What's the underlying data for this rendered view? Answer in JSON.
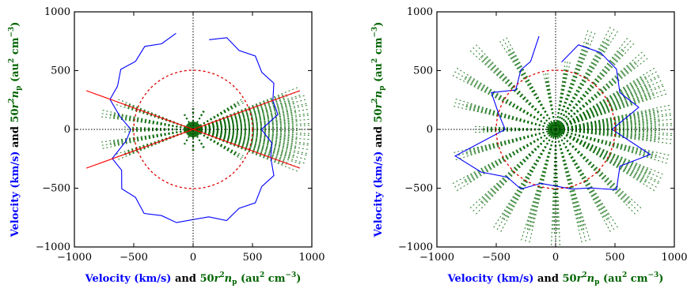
{
  "figure": {
    "colors": {
      "velocity": "#0000ff",
      "density": "#006400",
      "circle": "#e00000",
      "lines": "#ff0000"
    },
    "xlabel": {
      "velocity": "Velocity (km/s)",
      "and": " and ",
      "density_prefix": "50",
      "r": "r",
      "two": "2",
      "n": "n",
      "p": "p",
      "units": " (au",
      "cm": " cm",
      "minus3": "−3",
      "close": ")"
    },
    "ylabel": {
      "velocity": "Velocity (km/s)",
      "and": " and ",
      "density_prefix": "50",
      "r": "r",
      "two": "2",
      "n": "n",
      "p": "p",
      "units": " (au",
      "cm": " cm",
      "minus3": "−3",
      "close": ")"
    }
  },
  "chart_data": [
    {
      "type": "scatter",
      "panel": "left",
      "xlim": [
        -1000,
        1000
      ],
      "ylim": [
        -1000,
        1000
      ],
      "xticks": [
        "−1000",
        "−500",
        "0",
        "500",
        "1000"
      ],
      "yticks": [
        "1000",
        "500",
        "0",
        "−500",
        "−1000"
      ],
      "xtick_values": [
        -1000,
        -500,
        0,
        500,
        1000
      ],
      "ytick_values": [
        1000,
        500,
        0,
        -500,
        -1000
      ],
      "reference_circle_radius": 500,
      "red_lines": [
        {
          "from": [
            -900,
            -330
          ],
          "to": [
            900,
            330
          ]
        },
        {
          "from": [
            -900,
            330
          ],
          "to": [
            900,
            -330
          ]
        }
      ],
      "velocity_curve": [
        {
          "angle_deg": 100,
          "r": 805
        },
        {
          "angle_deg": 110,
          "r": 800
        },
        {
          "angle_deg": 120,
          "r": 790
        },
        {
          "angle_deg": 130,
          "r": 780
        },
        {
          "angle_deg": 140,
          "r": 770
        },
        {
          "angle_deg": 150,
          "r": 760
        },
        {
          "angle_deg": 160,
          "r": 720
        },
        {
          "angle_deg": 170,
          "r": 650
        },
        {
          "angle_deg": 180,
          "r": 500
        },
        {
          "angle_deg": 190,
          "r": 600
        },
        {
          "angle_deg": 200,
          "r": 700
        },
        {
          "angle_deg": 210,
          "r": 720
        },
        {
          "angle_deg": 220,
          "r": 760
        },
        {
          "angle_deg": 230,
          "r": 780
        },
        {
          "angle_deg": 240,
          "r": 800
        },
        {
          "angle_deg": 250,
          "r": 805
        },
        {
          "angle_deg": 260,
          "r": 780
        },
        {
          "angle_deg": 280,
          "r": 780
        },
        {
          "angle_deg": 290,
          "r": 800
        },
        {
          "angle_deg": 300,
          "r": 800
        },
        {
          "angle_deg": 310,
          "r": 790
        },
        {
          "angle_deg": 320,
          "r": 780
        },
        {
          "angle_deg": 330,
          "r": 760
        },
        {
          "angle_deg": 340,
          "r": 720
        },
        {
          "angle_deg": 350,
          "r": 650
        },
        {
          "angle_deg": 0,
          "r": 600
        },
        {
          "angle_deg": 10,
          "r": 700
        },
        {
          "angle_deg": 20,
          "r": 740
        },
        {
          "angle_deg": 30,
          "r": 760
        },
        {
          "angle_deg": 40,
          "r": 780
        },
        {
          "angle_deg": 50,
          "r": 790
        },
        {
          "angle_deg": 60,
          "r": 800
        },
        {
          "angle_deg": 70,
          "r": 805
        },
        {
          "angle_deg": 80,
          "r": 800
        }
      ],
      "density_rays": [
        {
          "angle_deg": -20,
          "r": 950
        },
        {
          "angle_deg": -15,
          "r": 1000
        },
        {
          "angle_deg": -10,
          "r": 1000
        },
        {
          "angle_deg": -5,
          "r": 1000
        },
        {
          "angle_deg": 0,
          "r": 1000
        },
        {
          "angle_deg": 5,
          "r": 1000
        },
        {
          "angle_deg": 10,
          "r": 1000
        },
        {
          "angle_deg": 15,
          "r": 1000
        },
        {
          "angle_deg": 20,
          "r": 950
        },
        {
          "angle_deg": 30,
          "r": 500
        },
        {
          "angle_deg": -30,
          "r": 500
        },
        {
          "angle_deg": 60,
          "r": 200
        },
        {
          "angle_deg": 90,
          "r": 180
        },
        {
          "angle_deg": 120,
          "r": 150
        },
        {
          "angle_deg": 160,
          "r": 700
        },
        {
          "angle_deg": 170,
          "r": 800
        },
        {
          "angle_deg": 180,
          "r": 600
        },
        {
          "angle_deg": 190,
          "r": 800
        },
        {
          "angle_deg": 200,
          "r": 700
        },
        {
          "angle_deg": 240,
          "r": 150
        },
        {
          "angle_deg": 270,
          "r": 180
        },
        {
          "angle_deg": 300,
          "r": 200
        }
      ]
    },
    {
      "type": "scatter",
      "panel": "right",
      "xlim": [
        -1000,
        1000
      ],
      "ylim": [
        -1000,
        1000
      ],
      "xticks": [
        "−1000",
        "−500",
        "0",
        "500",
        "1000"
      ],
      "yticks": [
        "1000",
        "500",
        "0",
        "−500",
        "−1000"
      ],
      "xtick_values": [
        -1000,
        -500,
        0,
        500,
        1000
      ],
      "ytick_values": [
        1000,
        500,
        0,
        -500,
        -1000
      ],
      "reference_circle_radius": 500,
      "velocity_curve": [
        {
          "angle_deg": 100,
          "r": 780
        },
        {
          "angle_deg": 110,
          "r": 640
        },
        {
          "angle_deg": 120,
          "r": 560
        },
        {
          "angle_deg": 135,
          "r": 500
        },
        {
          "angle_deg": 150,
          "r": 600
        },
        {
          "angle_deg": 165,
          "r": 520
        },
        {
          "angle_deg": 180,
          "r": 400
        },
        {
          "angle_deg": 195,
          "r": 900
        },
        {
          "angle_deg": 210,
          "r": 700
        },
        {
          "angle_deg": 225,
          "r": 600
        },
        {
          "angle_deg": 240,
          "r": 560
        },
        {
          "angle_deg": 255,
          "r": 500
        },
        {
          "angle_deg": 285,
          "r": 500
        },
        {
          "angle_deg": 300,
          "r": 600
        },
        {
          "angle_deg": 315,
          "r": 700
        },
        {
          "angle_deg": 330,
          "r": 650
        },
        {
          "angle_deg": 345,
          "r": 800
        },
        {
          "angle_deg": 0,
          "r": 500
        },
        {
          "angle_deg": 15,
          "r": 700
        },
        {
          "angle_deg": 30,
          "r": 650
        },
        {
          "angle_deg": 45,
          "r": 700
        },
        {
          "angle_deg": 60,
          "r": 780
        },
        {
          "angle_deg": 75,
          "r": 720
        },
        {
          "angle_deg": 85,
          "r": 600
        }
      ],
      "density_rays": [
        {
          "angle_deg": 0,
          "r": 1000
        },
        {
          "angle_deg": 10,
          "r": 1000
        },
        {
          "angle_deg": 20,
          "r": 1000
        },
        {
          "angle_deg": 30,
          "r": 1000
        },
        {
          "angle_deg": 40,
          "r": 1000
        },
        {
          "angle_deg": 50,
          "r": 1000
        },
        {
          "angle_deg": 60,
          "r": 1000
        },
        {
          "angle_deg": 70,
          "r": 900
        },
        {
          "angle_deg": 80,
          "r": 600
        },
        {
          "angle_deg": 100,
          "r": 500
        },
        {
          "angle_deg": 120,
          "r": 900
        },
        {
          "angle_deg": 135,
          "r": 1000
        },
        {
          "angle_deg": 150,
          "r": 1000
        },
        {
          "angle_deg": 165,
          "r": 900
        },
        {
          "angle_deg": 180,
          "r": 700
        },
        {
          "angle_deg": 195,
          "r": 900
        },
        {
          "angle_deg": 210,
          "r": 1000
        },
        {
          "angle_deg": 225,
          "r": 1000
        },
        {
          "angle_deg": 240,
          "r": 1000
        },
        {
          "angle_deg": 255,
          "r": 1000
        },
        {
          "angle_deg": 270,
          "r": 1000
        },
        {
          "angle_deg": 285,
          "r": 1000
        },
        {
          "angle_deg": 300,
          "r": 1000
        },
        {
          "angle_deg": 315,
          "r": 1000
        },
        {
          "angle_deg": 330,
          "r": 1000
        },
        {
          "angle_deg": 345,
          "r": 1000
        },
        {
          "angle_deg": -5,
          "r": 1000
        },
        {
          "angle_deg": 5,
          "r": 1000
        },
        {
          "angle_deg": 25,
          "r": 1000
        },
        {
          "angle_deg": -25,
          "r": 1000
        }
      ]
    }
  ]
}
